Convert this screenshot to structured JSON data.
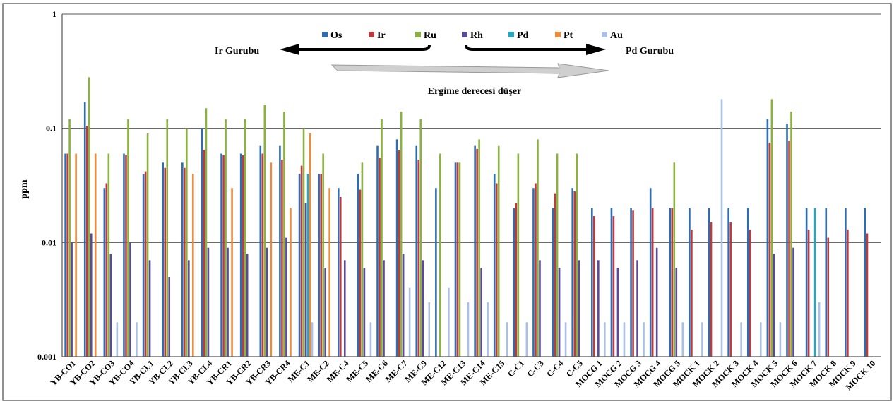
{
  "chart_data": {
    "type": "bar",
    "title": "",
    "xlabel": "",
    "ylabel": "ppm",
    "y_scale": "log",
    "ylim": [
      0.001,
      1
    ],
    "y_ticks": [
      {
        "value": 0.001,
        "label": "0.001"
      },
      {
        "value": 0.01,
        "label": "0.01"
      },
      {
        "value": 0.1,
        "label": "0.1"
      },
      {
        "value": 1,
        "label": "1"
      }
    ],
    "grid": true,
    "legend_position": "top-center",
    "categories": [
      "YB-CO1",
      "YB-CO2",
      "YB-CO3",
      "YB-CO4",
      "YB-CL1",
      "YB-CL2",
      "YB-CL3",
      "YB-CL4",
      "YB-CR1",
      "YB-CR2",
      "YB-CR3",
      "YB-CR4",
      "ME-C1",
      "ME-C2",
      "ME-C4",
      "ME-C5",
      "ME-C6",
      "ME-C7",
      "ME-C9",
      "ME-C12",
      "ME-C13",
      "ME-C14",
      "ME-C15",
      "C-C1",
      "C-C3",
      "C-C4",
      "C-C5",
      "MOCG 1",
      "MOCG 2",
      "MOCG 3",
      "MOCG 4",
      "MOCG 5",
      "MOCK 1",
      "MOCK 2",
      "MOCK 3",
      "MOCK 4",
      "MOCK 5",
      "MOCK 6",
      "MOCK 7",
      "MOCK 8",
      "MOCK 9",
      "MOCK 10"
    ],
    "series": [
      {
        "name": "Os",
        "color": "#2e6db4",
        "values": [
          0.06,
          0.17,
          0.03,
          0.06,
          0.04,
          0.05,
          0.05,
          0.1,
          0.06,
          0.06,
          0.07,
          0.07,
          0.04,
          0.04,
          0.03,
          0.04,
          0.07,
          0.08,
          0.07,
          0.03,
          0.05,
          0.07,
          0.04,
          0.02,
          0.03,
          0.02,
          0.03,
          0.02,
          0.02,
          0.02,
          0.03,
          0.02,
          0.02,
          0.02,
          0.02,
          0.02,
          0.12,
          0.11,
          0.02,
          0.02,
          0.02,
          0.02
        ]
      },
      {
        "name": "Ir",
        "color": "#c0393b",
        "values": [
          0.06,
          0.105,
          0.033,
          0.058,
          0.042,
          0.045,
          0.045,
          0.065,
          0.058,
          0.058,
          0.06,
          0.053,
          0.047,
          0.04,
          0.025,
          0.029,
          0.055,
          0.064,
          0.053,
          null,
          0.05,
          0.066,
          0.033,
          0.022,
          0.033,
          0.027,
          0.028,
          0.017,
          0.017,
          0.019,
          0.02,
          0.02,
          0.013,
          0.015,
          0.015,
          0.013,
          0.075,
          0.078,
          0.013,
          0.011,
          0.013,
          0.012
        ]
      },
      {
        "name": "Ru",
        "color": "#8bb13e",
        "values": [
          0.12,
          0.28,
          0.06,
          0.12,
          0.09,
          0.12,
          0.1,
          0.15,
          0.12,
          0.12,
          0.16,
          0.14,
          0.1,
          0.06,
          null,
          0.05,
          0.12,
          0.14,
          0.12,
          0.06,
          0.05,
          0.08,
          0.07,
          0.06,
          0.08,
          0.06,
          0.06,
          null,
          null,
          null,
          null,
          0.05,
          null,
          null,
          null,
          null,
          0.18,
          0.14,
          null,
          null,
          null,
          null
        ]
      },
      {
        "name": "Rh",
        "color": "#5a4a9c",
        "values": [
          0.01,
          0.012,
          0.008,
          0.01,
          0.007,
          0.005,
          0.007,
          0.009,
          0.009,
          0.008,
          0.009,
          0.011,
          0.022,
          0.006,
          0.007,
          0.006,
          0.007,
          0.008,
          0.007,
          null,
          null,
          0.006,
          null,
          null,
          0.007,
          0.006,
          0.007,
          0.007,
          0.006,
          0.007,
          0.009,
          0.006,
          null,
          null,
          null,
          null,
          0.008,
          0.009,
          null,
          null,
          null,
          null
        ]
      },
      {
        "name": "Pd",
        "color": "#25a8bf",
        "values": [
          null,
          null,
          null,
          null,
          null,
          null,
          null,
          null,
          null,
          null,
          null,
          null,
          0.04,
          null,
          null,
          null,
          null,
          null,
          null,
          null,
          null,
          null,
          null,
          null,
          null,
          null,
          null,
          null,
          null,
          null,
          null,
          null,
          null,
          null,
          null,
          null,
          null,
          null,
          0.02,
          null,
          null,
          null
        ]
      },
      {
        "name": "Pt",
        "color": "#ee8a3a",
        "values": [
          0.06,
          0.06,
          null,
          null,
          null,
          null,
          0.04,
          null,
          0.03,
          null,
          0.05,
          0.02,
          0.09,
          0.03,
          null,
          null,
          null,
          null,
          null,
          null,
          null,
          null,
          null,
          null,
          null,
          null,
          null,
          null,
          null,
          null,
          null,
          null,
          null,
          null,
          null,
          null,
          null,
          null,
          null,
          null,
          null,
          null
        ]
      },
      {
        "name": "Au",
        "color": "#a9c1e6",
        "values": [
          null,
          null,
          0.002,
          0.002,
          null,
          null,
          null,
          null,
          null,
          null,
          null,
          null,
          0.002,
          null,
          null,
          0.002,
          null,
          0.004,
          0.003,
          0.004,
          0.003,
          0.003,
          0.002,
          0.002,
          null,
          0.002,
          null,
          0.002,
          0.002,
          0.002,
          null,
          0.002,
          0.002,
          0.18,
          0.002,
          0.002,
          0.002,
          null,
          0.003,
          null,
          null,
          null
        ]
      }
    ],
    "annotations": {
      "left_group": "Ir Gurubu",
      "right_group": "Pd Gurubu",
      "melting_text": "Ergime derecesi düşer"
    }
  }
}
